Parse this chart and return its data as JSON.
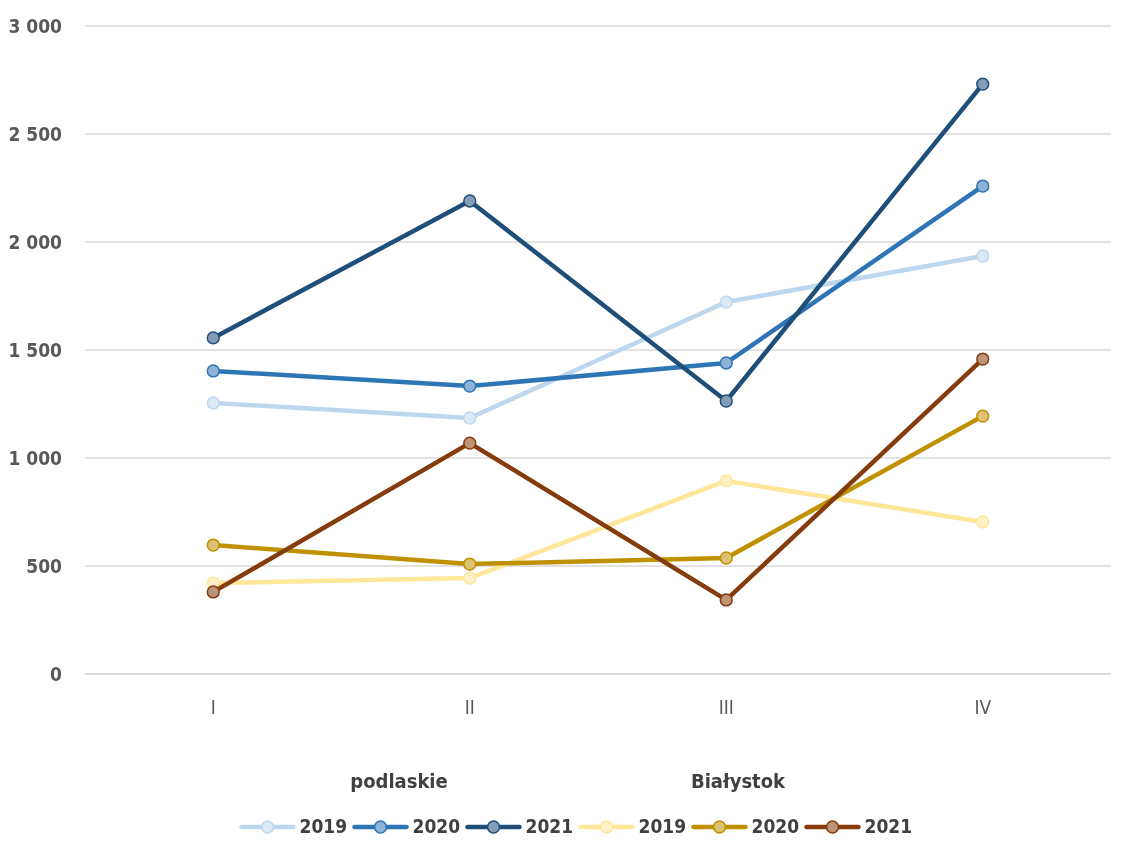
{
  "chart_data": {
    "type": "line",
    "categories": [
      "I",
      "II",
      "III",
      "IV"
    ],
    "series": [
      {
        "name": "2019",
        "color": "#bdd7ee",
        "values": [
          1255,
          1185,
          1722,
          1935
        ]
      },
      {
        "name": "2020",
        "color": "#2e75b6",
        "values": [
          1403,
          1333,
          1440,
          2259
        ]
      },
      {
        "name": "2021",
        "color": "#1f4e79",
        "values": [
          1556,
          2190,
          1264,
          2731
        ]
      },
      {
        "name": "2019",
        "color": "#ffe699",
        "values": [
          421,
          444,
          894,
          704
        ]
      },
      {
        "name": "2020",
        "color": "#bf9000",
        "values": [
          597,
          509,
          537,
          1194
        ]
      },
      {
        "name": "2021",
        "color": "#843c0c",
        "values": [
          380,
          1069,
          343,
          1458
        ]
      }
    ],
    "ylim": [
      0,
      3000
    ],
    "yticks": [
      0,
      500,
      {
        "value": 1000,
        "label": "1 000"
      },
      {
        "value": 1500,
        "label": "1 500"
      },
      {
        "value": 2000,
        "label": "2 000"
      },
      {
        "value": 2500,
        "label": "2 500"
      },
      {
        "value": 3000,
        "label": "3 000"
      }
    ],
    "grid": "y",
    "legend": "bottom",
    "marker": "circle",
    "annotations": [
      "podlaskie",
      "Białystok"
    ]
  }
}
